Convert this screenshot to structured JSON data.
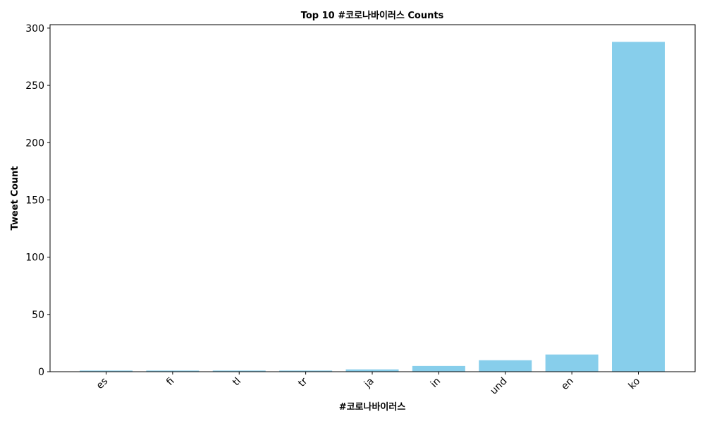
{
  "chart_data": {
    "type": "bar",
    "title": "Top 10 #코로나바이러스 Counts",
    "xlabel": "#코로나바이러스",
    "ylabel": "Tweet Count",
    "categories": [
      "es",
      "fi",
      "tl",
      "tr",
      "ja",
      "in",
      "und",
      "en",
      "ko"
    ],
    "values": [
      1,
      1,
      1,
      1,
      2,
      5,
      10,
      15,
      288
    ],
    "ylim": [
      0,
      303
    ],
    "yticks": [
      0,
      50,
      100,
      150,
      200,
      250,
      300
    ],
    "bar_color": "#87ceeb",
    "grid": false,
    "legend": "none"
  }
}
